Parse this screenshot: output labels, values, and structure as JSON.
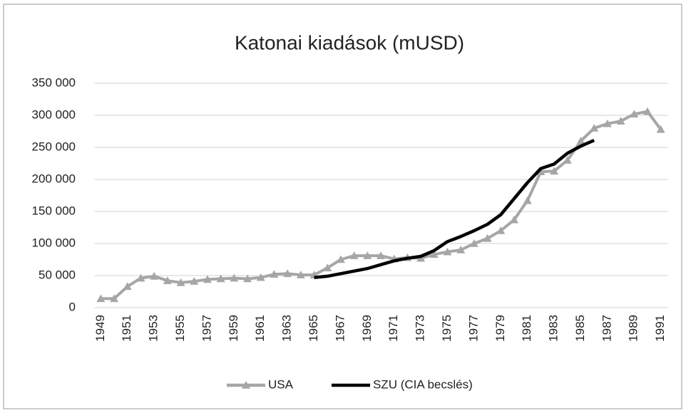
{
  "chart_data": {
    "type": "line",
    "title": "Katonai kiadások (mUSD)",
    "categories": [
      "1949",
      null,
      "1951",
      null,
      "1953",
      null,
      "1955",
      null,
      "1957",
      null,
      "1959",
      null,
      "1961",
      null,
      "1963",
      null,
      "1965",
      null,
      "1967",
      null,
      "1969",
      null,
      "1971",
      null,
      "1973",
      null,
      "1975",
      null,
      "1977",
      null,
      "1979",
      null,
      "1981",
      null,
      "1983",
      null,
      "1985",
      null,
      "1987",
      null,
      "1989",
      null,
      "1991"
    ],
    "series": [
      {
        "name": "USA",
        "color": "#a6a6a6",
        "marker": "triangle",
        "values": [
          14000,
          14000,
          33000,
          46000,
          49000,
          42000,
          39000,
          41000,
          44000,
          45000,
          46000,
          45000,
          47000,
          52000,
          53000,
          51000,
          51000,
          62000,
          75000,
          81000,
          81000,
          81000,
          76000,
          78000,
          77000,
          83000,
          87000,
          90000,
          100000,
          108000,
          120000,
          137000,
          167000,
          212000,
          213000,
          230000,
          260000,
          280000,
          287000,
          291000,
          302000,
          306000,
          278000
        ]
      },
      {
        "name": "SZU (CIA becslés)",
        "color": "#000000",
        "values": [
          null,
          null,
          null,
          null,
          null,
          null,
          null,
          null,
          null,
          null,
          null,
          null,
          null,
          null,
          null,
          null,
          47000,
          49000,
          53000,
          57000,
          61000,
          67000,
          73000,
          77000,
          80000,
          89000,
          103000,
          111000,
          120000,
          130000,
          145000,
          170000,
          195000,
          217000,
          224000,
          241000,
          252000,
          261000,
          null,
          null,
          null,
          null,
          null
        ]
      }
    ],
    "ylim": [
      0,
      350000
    ],
    "yticks": [
      0,
      {
        "value": 50000,
        "label": "50 000"
      },
      {
        "value": 100000,
        "label": "100 000"
      },
      {
        "value": 150000,
        "label": "150 000"
      },
      {
        "value": 200000,
        "label": "200 000"
      },
      {
        "value": 250000,
        "label": "250 000"
      },
      {
        "value": 300000,
        "label": "300 000"
      },
      {
        "value": 350000,
        "label": "350 000"
      }
    ],
    "grid": true,
    "legend": "bottom"
  }
}
